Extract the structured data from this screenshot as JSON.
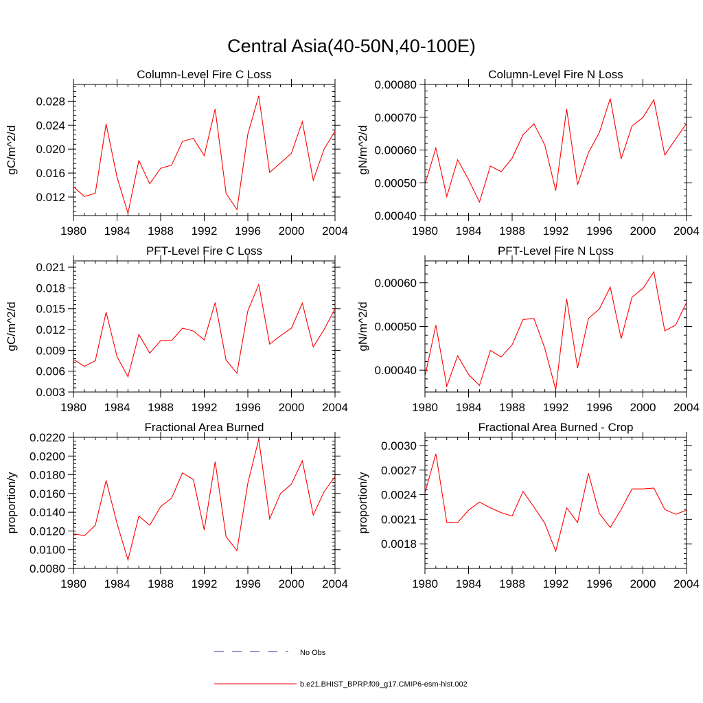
{
  "title": "Central Asia(40-50N,40-100E)",
  "colors": {
    "model_line": "#ff0000",
    "obs_line": "#3333aa",
    "axis": "#000000"
  },
  "legend": {
    "obs_label": "No Obs",
    "model_label": "b.e21.BHIST_BPRP.f09_g17.CMIP6-esm-hist.002"
  },
  "chart_data": [
    {
      "type": "line",
      "title": "Column-Level Fire C Loss",
      "ylabel": "gC/m^2/d",
      "xlim": [
        1980,
        2004
      ],
      "ylim": [
        0.0089,
        0.0308
      ],
      "xticks": [
        "1980",
        "1984",
        "1988",
        "1992",
        "1996",
        "2000",
        "2004"
      ],
      "yticks": [
        "0.012",
        "0.016",
        "0.020",
        "0.024",
        "0.028"
      ],
      "grid": false,
      "x": [
        1980,
        1981,
        1982,
        1983,
        1984,
        1985,
        1986,
        1987,
        1988,
        1989,
        1990,
        1991,
        1992,
        1993,
        1994,
        1995,
        1996,
        1997,
        1998,
        1999,
        2000,
        2001,
        2002,
        2003,
        2004
      ],
      "series": [
        {
          "values": [
            0.0137,
            0.0121,
            0.0126,
            0.0242,
            0.0153,
            0.0093,
            0.0181,
            0.0142,
            0.0168,
            0.0173,
            0.0213,
            0.0218,
            0.0189,
            0.0267,
            0.0126,
            0.0099,
            0.0225,
            0.0289,
            0.0161,
            0.0177,
            0.0193,
            0.0246,
            0.0148,
            0.02,
            0.023
          ]
        }
      ]
    },
    {
      "type": "line",
      "title": "Column-Level Fire N Loss",
      "ylabel": "gN/m^2/d",
      "xlim": [
        1980,
        2004
      ],
      "ylim": [
        0.0004,
        0.0008
      ],
      "xticks": [
        "1980",
        "1984",
        "1988",
        "1992",
        "1996",
        "2000",
        "2004"
      ],
      "yticks": [
        "0.00040",
        "0.00050",
        "0.00060",
        "0.00070",
        "0.00080"
      ],
      "grid": false,
      "x": [
        1980,
        1981,
        1982,
        1983,
        1984,
        1985,
        1986,
        1987,
        1988,
        1989,
        1990,
        1991,
        1992,
        1993,
        1994,
        1995,
        1996,
        1997,
        1998,
        1999,
        2000,
        2001,
        2002,
        2003,
        2004
      ],
      "series": [
        {
          "values": [
            0.000495,
            0.000606,
            0.000458,
            0.00057,
            0.00051,
            0.000441,
            0.000551,
            0.000534,
            0.000575,
            0.000647,
            0.00068,
            0.000615,
            0.000476,
            0.000725,
            0.000494,
            0.000592,
            0.000653,
            0.000757,
            0.000573,
            0.000673,
            0.000699,
            0.000753,
            0.000585,
            0.000633,
            0.000681
          ]
        }
      ]
    },
    {
      "type": "line",
      "title": "PFT-Level Fire C Loss",
      "ylabel": "gC/m^2/d",
      "xlim": [
        1980,
        2004
      ],
      "ylim": [
        0.003,
        0.0219
      ],
      "xticks": [
        "1980",
        "1984",
        "1988",
        "1992",
        "1996",
        "2000",
        "2004"
      ],
      "yticks": [
        "0.003",
        "0.006",
        "0.009",
        "0.012",
        "0.015",
        "0.018",
        "0.021"
      ],
      "grid": false,
      "x": [
        1980,
        1981,
        1982,
        1983,
        1984,
        1985,
        1986,
        1987,
        1988,
        1989,
        1990,
        1991,
        1992,
        1993,
        1994,
        1995,
        1996,
        1997,
        1998,
        1999,
        2000,
        2001,
        2002,
        2003,
        2004
      ],
      "series": [
        {
          "values": [
            0.0077,
            0.0067,
            0.0075,
            0.0145,
            0.0081,
            0.0052,
            0.0113,
            0.0086,
            0.0104,
            0.0104,
            0.0122,
            0.0118,
            0.0105,
            0.0159,
            0.0076,
            0.0057,
            0.0147,
            0.0185,
            0.0099,
            0.0111,
            0.0122,
            0.0158,
            0.0095,
            0.012,
            0.015
          ]
        }
      ]
    },
    {
      "type": "line",
      "title": "PFT-Level Fire N Loss",
      "ylabel": "gN/m^2/d",
      "xlim": [
        1980,
        2004
      ],
      "ylim": [
        0.00035,
        0.00065
      ],
      "xticks": [
        "1980",
        "1984",
        "1988",
        "1992",
        "1996",
        "2000",
        "2004"
      ],
      "yticks": [
        "0.00040",
        "0.00050",
        "0.00060"
      ],
      "grid": false,
      "x": [
        1980,
        1981,
        1982,
        1983,
        1984,
        1985,
        1986,
        1987,
        1988,
        1989,
        1990,
        1991,
        1992,
        1993,
        1994,
        1995,
        1996,
        1997,
        1998,
        1999,
        2000,
        2001,
        2002,
        2003,
        2004
      ],
      "series": [
        {
          "values": [
            0.000385,
            0.000503,
            0.000363,
            0.000433,
            0.00039,
            0.000365,
            0.000445,
            0.00043,
            0.000458,
            0.000516,
            0.000518,
            0.00045,
            0.000355,
            0.000563,
            0.000405,
            0.000518,
            0.00054,
            0.00059,
            0.000472,
            0.000567,
            0.000587,
            0.000625,
            0.00049,
            0.000503,
            0.000555
          ]
        }
      ]
    },
    {
      "type": "line",
      "title": "Fractional Area Burned",
      "ylabel": "proportion/y",
      "xlim": [
        1980,
        2004
      ],
      "ylim": [
        0.008,
        0.022
      ],
      "xticks": [
        "1980",
        "1984",
        "1988",
        "1992",
        "1996",
        "2000",
        "2004"
      ],
      "yticks": [
        "0.0080",
        "0.0100",
        "0.0120",
        "0.0140",
        "0.0160",
        "0.0180",
        "0.0200",
        "0.0220"
      ],
      "grid": false,
      "x": [
        1980,
        1981,
        1982,
        1983,
        1984,
        1985,
        1986,
        1987,
        1988,
        1989,
        1990,
        1991,
        1992,
        1993,
        1994,
        1995,
        1996,
        1997,
        1998,
        1999,
        2000,
        2001,
        2002,
        2003,
        2004
      ],
      "series": [
        {
          "values": [
            0.0117,
            0.0115,
            0.0126,
            0.0174,
            0.0128,
            0.0089,
            0.0136,
            0.0126,
            0.0146,
            0.0155,
            0.0182,
            0.0175,
            0.0121,
            0.0194,
            0.0114,
            0.0099,
            0.0171,
            0.0218,
            0.0133,
            0.016,
            0.017,
            0.0195,
            0.0137,
            0.0162,
            0.0178
          ]
        }
      ]
    },
    {
      "type": "line",
      "title": "Fractional Area Burned - Crop",
      "ylabel": "proportion/y",
      "xlim": [
        1980,
        2004
      ],
      "ylim": [
        0.0015,
        0.0031
      ],
      "xticks": [
        "1980",
        "1984",
        "1988",
        "1992",
        "1996",
        "2000",
        "2004"
      ],
      "yticks": [
        "0.0018",
        "0.0021",
        "0.0024",
        "0.0027",
        "0.0030"
      ],
      "grid": false,
      "x": [
        1980,
        1981,
        1982,
        1983,
        1984,
        1985,
        1986,
        1987,
        1988,
        1989,
        1990,
        1991,
        1992,
        1993,
        1994,
        1995,
        1996,
        1997,
        1998,
        1999,
        2000,
        2001,
        2002,
        2003,
        2004
      ],
      "series": [
        {
          "values": [
            0.00242,
            0.0029,
            0.00206,
            0.00206,
            0.00221,
            0.00231,
            0.00224,
            0.00218,
            0.00214,
            0.00244,
            0.00225,
            0.00205,
            0.00171,
            0.00224,
            0.00206,
            0.00266,
            0.00217,
            0.002,
            0.00222,
            0.00247,
            0.00247,
            0.00248,
            0.00222,
            0.00216,
            0.00221
          ]
        }
      ]
    }
  ]
}
